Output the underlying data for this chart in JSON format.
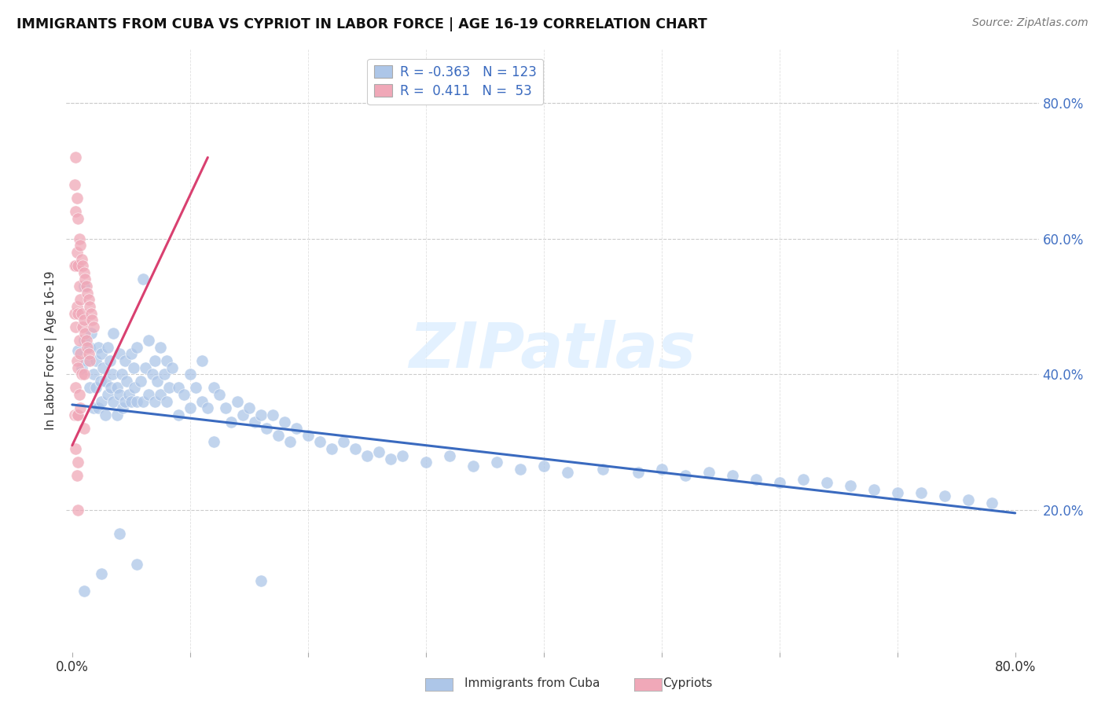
{
  "title": "IMMIGRANTS FROM CUBA VS CYPRIOT IN LABOR FORCE | AGE 16-19 CORRELATION CHART",
  "source": "Source: ZipAtlas.com",
  "ylabel": "In Labor Force | Age 16-19",
  "xlim": [
    -0.005,
    0.82
  ],
  "ylim": [
    -0.01,
    0.88
  ],
  "cuba_color": "#adc6e8",
  "cypriot_color": "#f0a8b8",
  "cuba_line_color": "#3a6abf",
  "cypriot_line_color": "#d94070",
  "watermark_color": "#ddeeff",
  "legend_R_cuba": "-0.363",
  "legend_N_cuba": "123",
  "legend_R_cypriot": "0.411",
  "legend_N_cypriot": "53",
  "cuba_trend_x": [
    0.0,
    0.8
  ],
  "cuba_trend_y": [
    0.355,
    0.195
  ],
  "cypriot_trend_x": [
    0.0,
    0.115
  ],
  "cypriot_trend_y": [
    0.295,
    0.72
  ],
  "cuba_scatter_x": [
    0.005,
    0.008,
    0.01,
    0.01,
    0.012,
    0.015,
    0.015,
    0.016,
    0.018,
    0.018,
    0.02,
    0.02,
    0.022,
    0.022,
    0.024,
    0.025,
    0.025,
    0.026,
    0.028,
    0.028,
    0.03,
    0.03,
    0.032,
    0.033,
    0.034,
    0.035,
    0.035,
    0.038,
    0.038,
    0.04,
    0.04,
    0.042,
    0.043,
    0.045,
    0.045,
    0.046,
    0.048,
    0.05,
    0.05,
    0.052,
    0.053,
    0.055,
    0.055,
    0.058,
    0.06,
    0.06,
    0.062,
    0.065,
    0.065,
    0.068,
    0.07,
    0.07,
    0.072,
    0.075,
    0.075,
    0.078,
    0.08,
    0.08,
    0.082,
    0.085,
    0.09,
    0.09,
    0.095,
    0.1,
    0.1,
    0.105,
    0.11,
    0.11,
    0.115,
    0.12,
    0.12,
    0.125,
    0.13,
    0.135,
    0.14,
    0.145,
    0.15,
    0.155,
    0.16,
    0.165,
    0.17,
    0.175,
    0.18,
    0.185,
    0.19,
    0.2,
    0.21,
    0.22,
    0.23,
    0.24,
    0.25,
    0.26,
    0.27,
    0.28,
    0.3,
    0.32,
    0.34,
    0.36,
    0.38,
    0.4,
    0.42,
    0.45,
    0.48,
    0.5,
    0.52,
    0.54,
    0.56,
    0.58,
    0.6,
    0.62,
    0.64,
    0.66,
    0.68,
    0.7,
    0.72,
    0.74,
    0.76,
    0.78,
    0.01,
    0.025,
    0.055,
    0.16,
    0.04
  ],
  "cuba_scatter_y": [
    0.435,
    0.41,
    0.45,
    0.53,
    0.42,
    0.44,
    0.38,
    0.46,
    0.4,
    0.35,
    0.42,
    0.38,
    0.44,
    0.35,
    0.39,
    0.43,
    0.36,
    0.41,
    0.39,
    0.34,
    0.44,
    0.37,
    0.42,
    0.38,
    0.4,
    0.36,
    0.46,
    0.38,
    0.34,
    0.43,
    0.37,
    0.4,
    0.35,
    0.42,
    0.36,
    0.39,
    0.37,
    0.43,
    0.36,
    0.41,
    0.38,
    0.44,
    0.36,
    0.39,
    0.54,
    0.36,
    0.41,
    0.45,
    0.37,
    0.4,
    0.42,
    0.36,
    0.39,
    0.44,
    0.37,
    0.4,
    0.42,
    0.36,
    0.38,
    0.41,
    0.38,
    0.34,
    0.37,
    0.4,
    0.35,
    0.38,
    0.36,
    0.42,
    0.35,
    0.38,
    0.3,
    0.37,
    0.35,
    0.33,
    0.36,
    0.34,
    0.35,
    0.33,
    0.34,
    0.32,
    0.34,
    0.31,
    0.33,
    0.3,
    0.32,
    0.31,
    0.3,
    0.29,
    0.3,
    0.29,
    0.28,
    0.285,
    0.275,
    0.28,
    0.27,
    0.28,
    0.265,
    0.27,
    0.26,
    0.265,
    0.255,
    0.26,
    0.255,
    0.26,
    0.25,
    0.255,
    0.25,
    0.245,
    0.24,
    0.245,
    0.24,
    0.235,
    0.23,
    0.225,
    0.225,
    0.22,
    0.215,
    0.21,
    0.08,
    0.105,
    0.12,
    0.095,
    0.165
  ],
  "cypriot_scatter_x": [
    0.002,
    0.002,
    0.002,
    0.002,
    0.003,
    0.003,
    0.003,
    0.003,
    0.003,
    0.003,
    0.004,
    0.004,
    0.004,
    0.004,
    0.004,
    0.004,
    0.005,
    0.005,
    0.005,
    0.005,
    0.005,
    0.005,
    0.005,
    0.006,
    0.006,
    0.006,
    0.006,
    0.007,
    0.007,
    0.007,
    0.007,
    0.008,
    0.008,
    0.008,
    0.009,
    0.009,
    0.01,
    0.01,
    0.01,
    0.01,
    0.011,
    0.011,
    0.012,
    0.012,
    0.013,
    0.013,
    0.014,
    0.014,
    0.015,
    0.015,
    0.016,
    0.017,
    0.018
  ],
  "cypriot_scatter_y": [
    0.68,
    0.56,
    0.49,
    0.34,
    0.72,
    0.64,
    0.56,
    0.47,
    0.38,
    0.29,
    0.66,
    0.58,
    0.5,
    0.42,
    0.34,
    0.25,
    0.63,
    0.56,
    0.49,
    0.41,
    0.34,
    0.27,
    0.2,
    0.6,
    0.53,
    0.45,
    0.37,
    0.59,
    0.51,
    0.43,
    0.35,
    0.57,
    0.49,
    0.4,
    0.56,
    0.47,
    0.55,
    0.48,
    0.4,
    0.32,
    0.54,
    0.46,
    0.53,
    0.45,
    0.52,
    0.44,
    0.51,
    0.43,
    0.5,
    0.42,
    0.49,
    0.48,
    0.47
  ]
}
